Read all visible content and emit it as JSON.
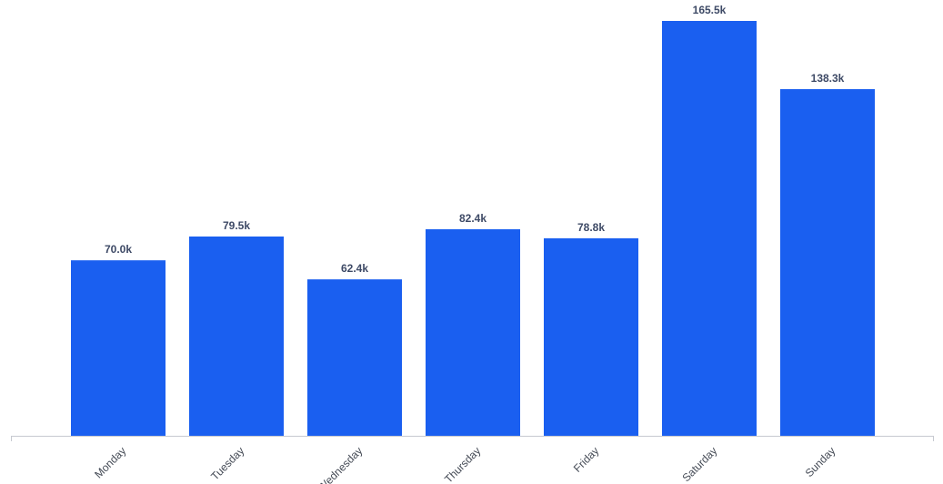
{
  "chart_data": {
    "type": "bar",
    "title": "",
    "xlabel": "",
    "ylabel": "",
    "categories": [
      "Monday",
      "Tuesday",
      "Wednesday",
      "Thursday",
      "Friday",
      "Saturday",
      "Sunday"
    ],
    "values": [
      70.0,
      79.5,
      62.4,
      82.4,
      78.8,
      165.5,
      138.3
    ],
    "value_unit": "k",
    "data_labels": [
      "70.0k",
      "79.5k",
      "62.4k",
      "82.4k",
      "78.8k",
      "165.5k",
      "138.3k"
    ],
    "ylim": [
      0,
      165.5
    ],
    "grid": false,
    "legend": "none",
    "x_tick_rotation": "45 degrees, slanted"
  },
  "colors": {
    "bar": "#1a5ff0",
    "axis": "#c6c9d0",
    "data_label": "#3e4a66",
    "tick_label": "#444a55"
  }
}
